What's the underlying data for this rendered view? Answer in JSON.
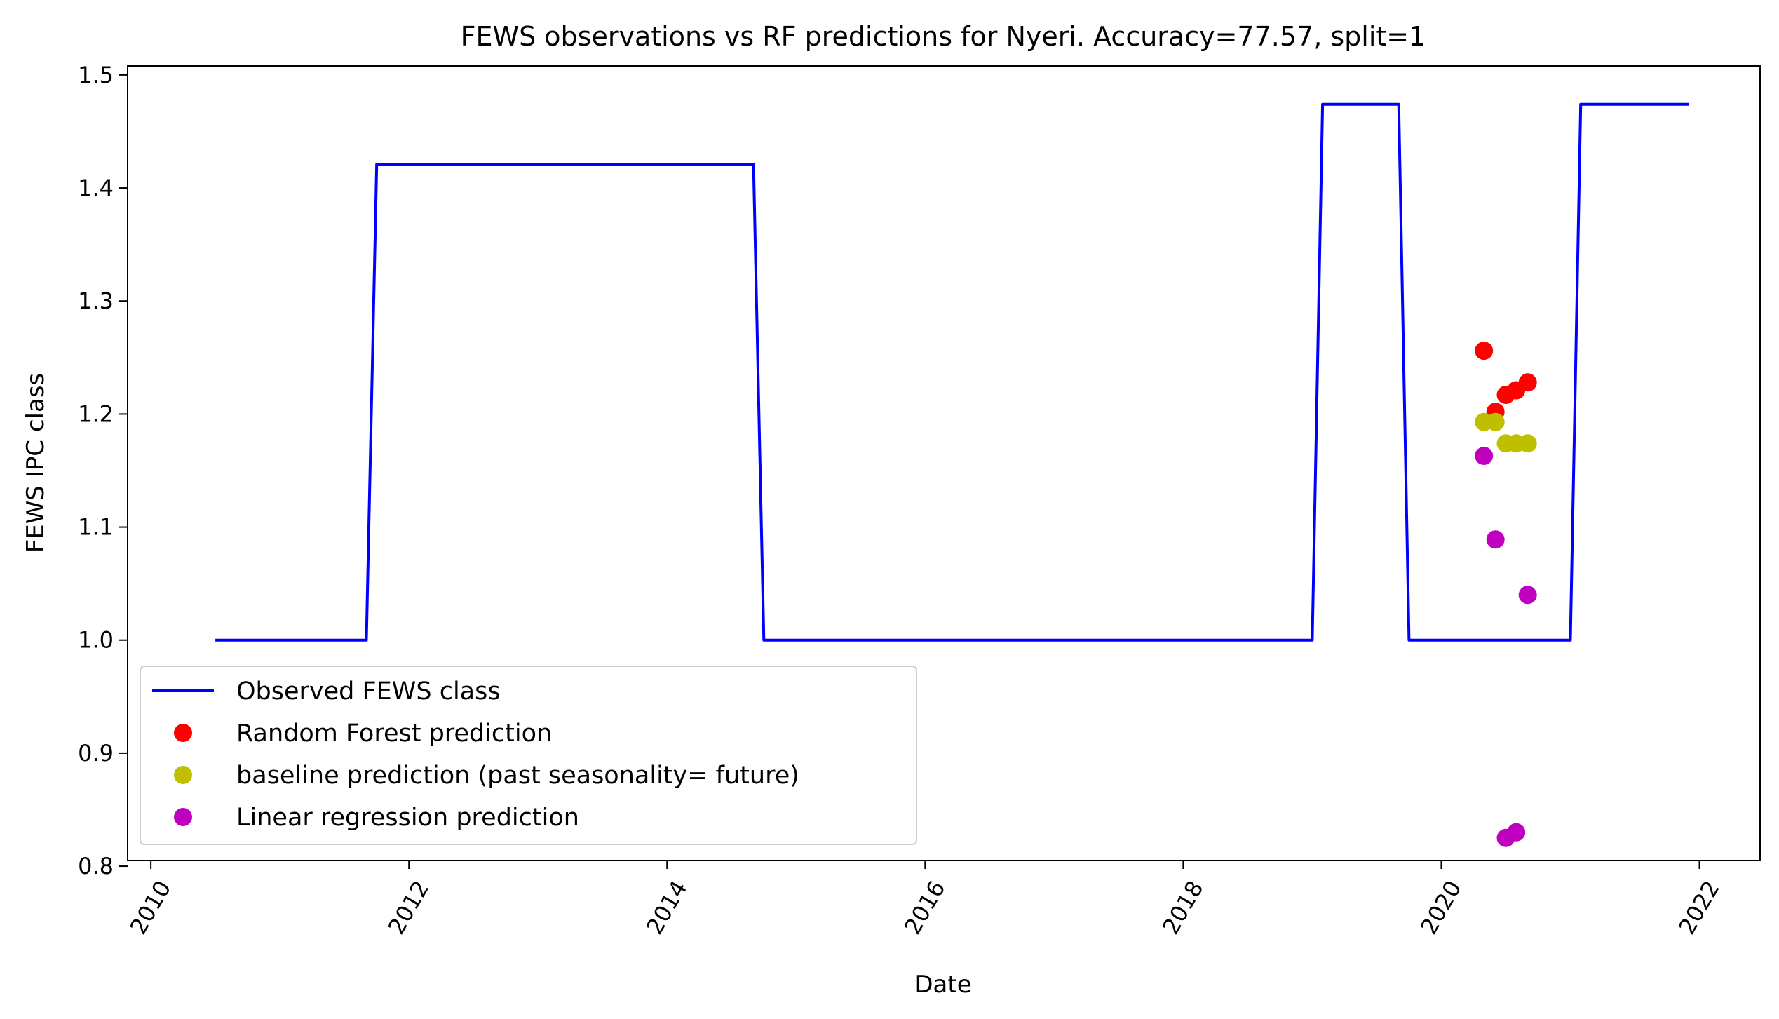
{
  "chart_data": {
    "type": "line",
    "title": "FEWS observations vs RF predictions for Nyeri. Accuracy=77.57, split=1",
    "xlabel": "Date",
    "ylabel": "FEWS IPC class",
    "xlim": [
      2009.82,
      2022.47
    ],
    "ylim": [
      0.805,
      1.508
    ],
    "xticks": [
      2010,
      2012,
      2014,
      2016,
      2018,
      2020,
      2022
    ],
    "xtick_labels": [
      "2010",
      "2012",
      "2014",
      "2016",
      "2018",
      "2020",
      "2022"
    ],
    "yticks": [
      0.8,
      0.9,
      1.0,
      1.1,
      1.2,
      1.3,
      1.4,
      1.5
    ],
    "ytick_labels": [
      "0.8",
      "0.9",
      "1.0",
      "1.1",
      "1.2",
      "1.3",
      "1.4",
      "1.5"
    ],
    "grid": false,
    "legend_position": "lower-left",
    "series": [
      {
        "name": "Observed FEWS class",
        "kind": "line",
        "color": "#0000ff",
        "x": [
          2010.5,
          2011.67,
          2011.75,
          2014.67,
          2014.75,
          2019.0,
          2019.08,
          2019.67,
          2019.75,
          2021.0,
          2021.08,
          2021.92
        ],
        "y": [
          1.0,
          1.0,
          1.421,
          1.421,
          1.0,
          1.0,
          1.474,
          1.474,
          1.0,
          1.0,
          1.474,
          1.474
        ]
      },
      {
        "name": "Random Forest prediction",
        "kind": "scatter",
        "color": "#ff0000",
        "x": [
          2020.33,
          2020.42,
          2020.5,
          2020.58,
          2020.67
        ],
        "y": [
          1.256,
          1.202,
          1.217,
          1.221,
          1.228
        ]
      },
      {
        "name": "baseline prediction (past seasonality= future)",
        "kind": "scatter",
        "color": "#bfbf00",
        "x": [
          2020.33,
          2020.42,
          2020.5,
          2020.58,
          2020.67
        ],
        "y": [
          1.193,
          1.193,
          1.174,
          1.174,
          1.174
        ]
      },
      {
        "name": "Linear regression prediction",
        "kind": "scatter",
        "color": "#bf00bf",
        "x": [
          2020.33,
          2020.42,
          2020.5,
          2020.58,
          2020.67
        ],
        "y": [
          1.163,
          1.089,
          0.825,
          0.83,
          1.04
        ]
      }
    ]
  }
}
